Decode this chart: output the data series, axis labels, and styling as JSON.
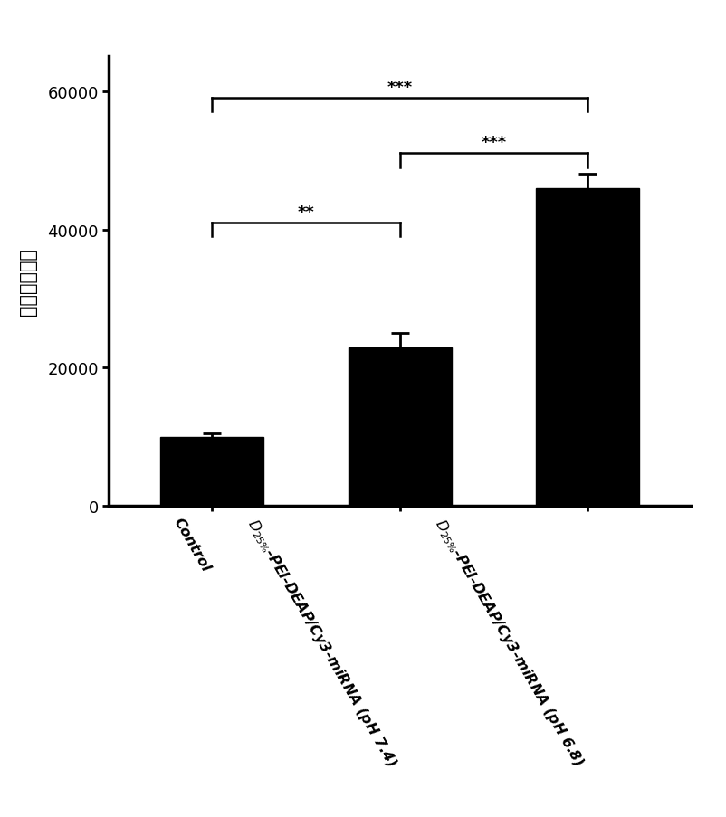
{
  "categories": [
    "Control",
    "D25%-PEI-DEAP/Cy3-miRNA (pH 7.4)",
    "D25%-PEI-DEAP/Cy3-miRNA (pH 6.8)"
  ],
  "values": [
    10000,
    23000,
    46000
  ],
  "errors": [
    500,
    2000,
    2000
  ],
  "bar_color": "#000000",
  "ylabel": "相对荧光强度",
  "ylim": [
    0,
    65000
  ],
  "yticks": [
    0,
    20000,
    40000,
    60000
  ],
  "background_color": "#ffffff",
  "bar_width": 0.55,
  "xlim": [
    -0.55,
    2.55
  ],
  "sig_bracket_lw": 1.8,
  "sig_fontsize": 13,
  "ylabel_fontsize": 15,
  "ytick_fontsize": 13,
  "xtick_fontsize": 11.5
}
